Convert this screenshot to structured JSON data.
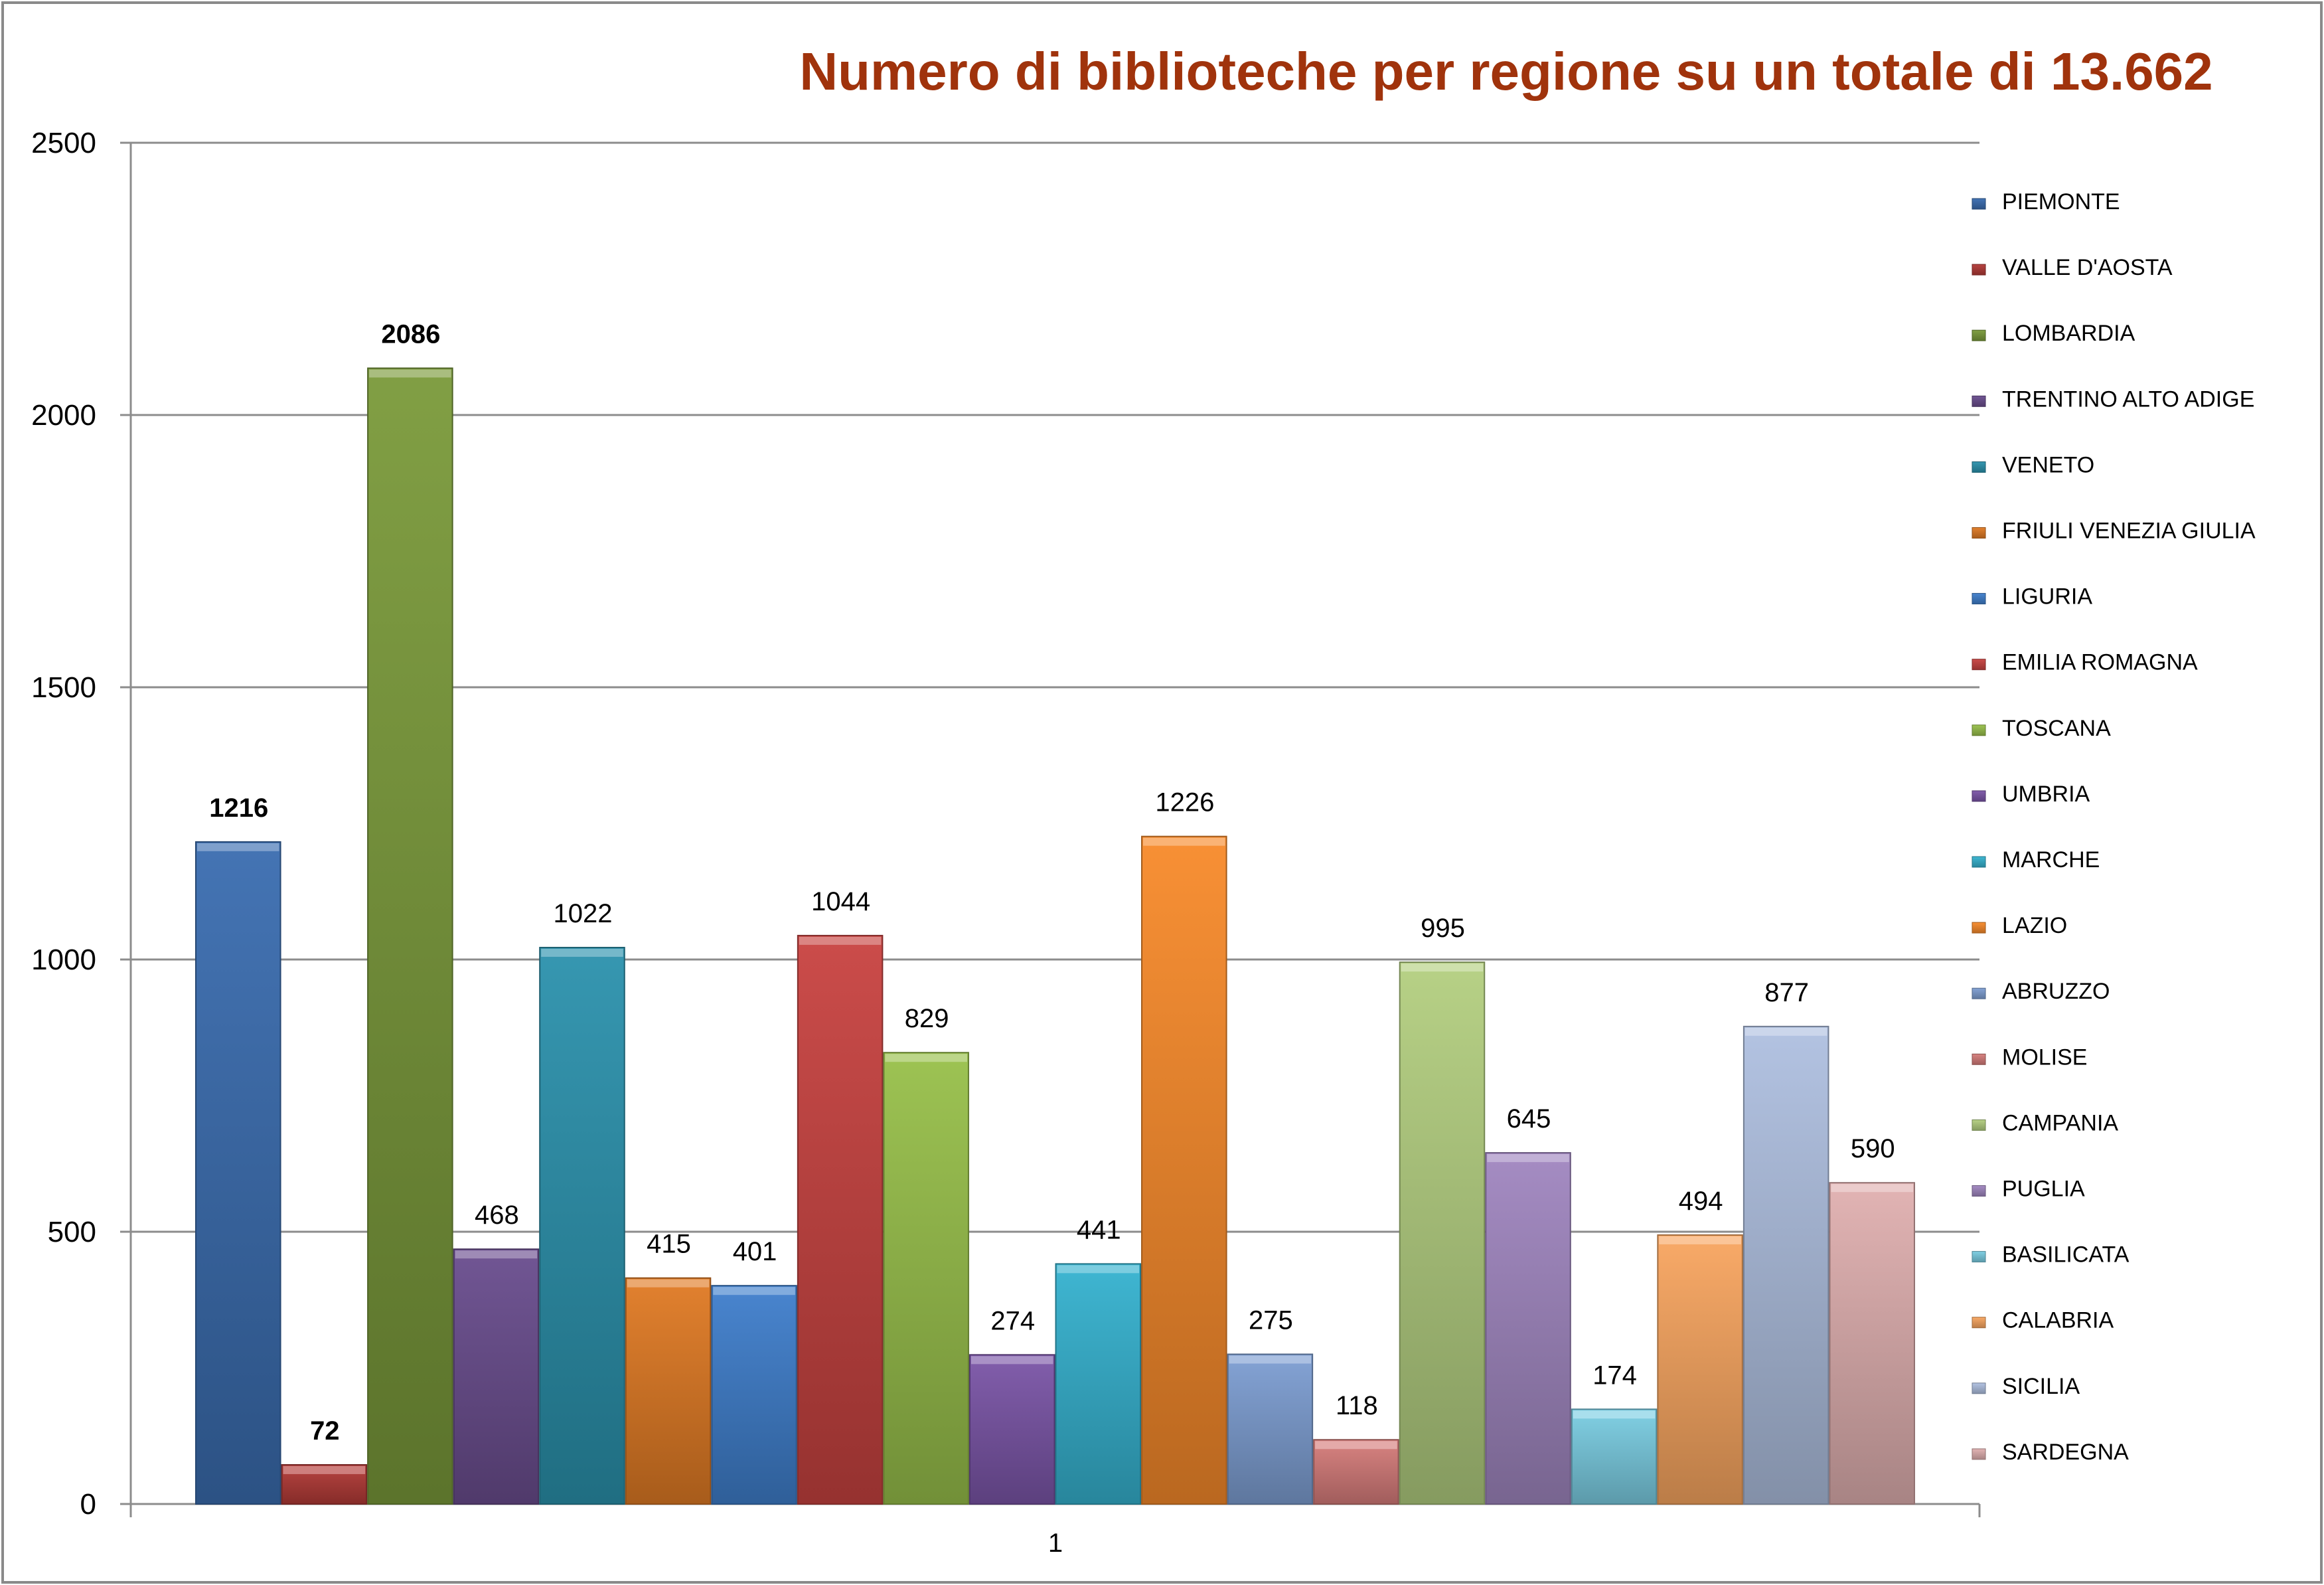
{
  "chart_data": {
    "type": "bar",
    "title": "Numero di biblioteche per regione su un totale di 13.662",
    "title_color": "#A0330C",
    "xlabel": "",
    "ylabel": "",
    "categories": [
      "1"
    ],
    "ylim": [
      0,
      2500
    ],
    "yticks": [
      0,
      500,
      1000,
      1500,
      2000,
      2500
    ],
    "grid": true,
    "legend_position": "right",
    "series": [
      {
        "name": "PIEMONTE",
        "values": [
          1216
        ],
        "color": "#3A6DB0",
        "label_bold": true
      },
      {
        "name": "VALLE D'AOSTA",
        "values": [
          72
        ],
        "color": "#B33A37",
        "label_bold": true
      },
      {
        "name": "LOMBARDIA",
        "values": [
          2086
        ],
        "color": "#7A9A3A",
        "label_bold": true
      },
      {
        "name": "TRENTINO ALTO ADIGE",
        "values": [
          468
        ],
        "color": "#6A4D8E",
        "label_bold": false
      },
      {
        "name": "VENETO",
        "values": [
          1022
        ],
        "color": "#2B92AD",
        "label_bold": false
      },
      {
        "name": "FRIULI VENEZIA GIULIA",
        "values": [
          415
        ],
        "color": "#E07A24",
        "label_bold": false
      },
      {
        "name": "LIGURIA",
        "values": [
          401
        ],
        "color": "#3F7FCC",
        "label_bold": false
      },
      {
        "name": "EMILIA ROMAGNA",
        "values": [
          1044
        ],
        "color": "#C84340",
        "label_bold": false
      },
      {
        "name": "TOSCANA",
        "values": [
          829
        ],
        "color": "#98C04A",
        "label_bold": false
      },
      {
        "name": "UMBRIA",
        "values": [
          274
        ],
        "color": "#7B55A8",
        "label_bold": false
      },
      {
        "name": "MARCHE",
        "values": [
          441
        ],
        "color": "#35B2D0",
        "label_bold": false
      },
      {
        "name": "LAZIO",
        "values": [
          1226
        ],
        "color": "#F88A2A",
        "label_bold": false
      },
      {
        "name": "ABRUZZO",
        "values": [
          275
        ],
        "color": "#7D9ED3",
        "label_bold": false
      },
      {
        "name": "MOLISE",
        "values": [
          118
        ],
        "color": "#D67C7A",
        "label_bold": false
      },
      {
        "name": "CAMPANIA",
        "values": [
          995
        ],
        "color": "#B3CF80",
        "label_bold": false
      },
      {
        "name": "PUGLIA",
        "values": [
          645
        ],
        "color": "#A086C0",
        "label_bold": false
      },
      {
        "name": "BASILICATA",
        "values": [
          174
        ],
        "color": "#7ACDE3",
        "label_bold": false
      },
      {
        "name": "CALABRIA",
        "values": [
          494
        ],
        "color": "#F9A660",
        "label_bold": false
      },
      {
        "name": "SICILIA",
        "values": [
          877
        ],
        "color": "#AFC0E0",
        "label_bold": false
      },
      {
        "name": "SARDEGNA",
        "values": [
          590
        ],
        "color": "#E0B0B0",
        "label_bold": false
      }
    ]
  }
}
